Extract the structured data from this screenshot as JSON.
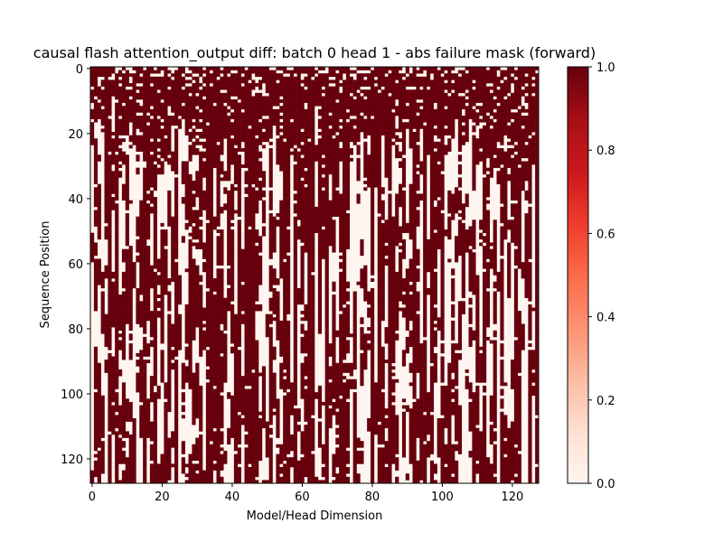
{
  "chart_data": {
    "type": "heatmap",
    "title": "causal flash attention_output diff: batch 0 head 1 - abs failure mask (forward)",
    "xlabel": "Model/Head Dimension",
    "ylabel": "Sequence Position",
    "rows": 128,
    "cols": 128,
    "xlim": [
      0,
      127
    ],
    "ylim": [
      127,
      0
    ],
    "x_ticks": [
      0,
      20,
      40,
      60,
      80,
      100,
      120
    ],
    "y_ticks": [
      0,
      20,
      40,
      60,
      80,
      100,
      120
    ],
    "value_range": [
      0.0,
      1.0
    ],
    "colormap": "Reds",
    "colormap_low": "#fff5f0",
    "colormap_high": "#67000d",
    "colorbar_ticks": [
      0.0,
      0.2,
      0.4,
      0.6,
      0.8,
      1.0
    ],
    "colorbar_tick_labels": [
      "0.0",
      "0.2",
      "0.4",
      "0.6",
      "0.8",
      "1.0"
    ],
    "cells_description": "binary mask: 1 = failure (dark red), 0 = pass; dense failures near sequence positions 0-30 with vertical column streaks below",
    "x_tick_labels": [
      "0",
      "20",
      "40",
      "60",
      "80",
      "100",
      "120"
    ],
    "y_tick_labels": [
      "0",
      "20",
      "40",
      "60",
      "80",
      "100",
      "120"
    ]
  }
}
